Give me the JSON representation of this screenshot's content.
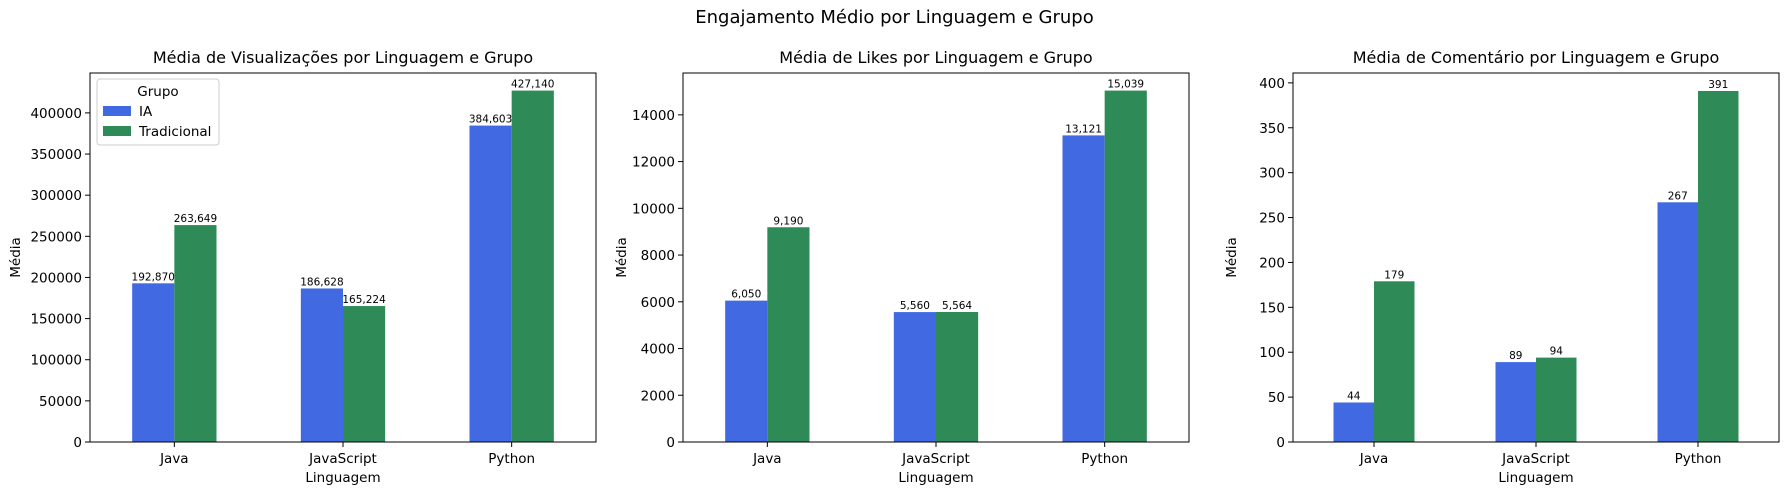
{
  "suptitle": "Engajamento Médio por Linguagem e Grupo",
  "chart_data": [
    {
      "type": "bar",
      "title": "Média de Visualizações por Linguagem e Grupo",
      "xlabel": "Linguagem",
      "ylabel": "Média",
      "categories": [
        "Java",
        "JavaScript",
        "Python"
      ],
      "series": [
        {
          "name": "IA",
          "color": "#4169e1",
          "values": [
            192870,
            186628,
            384603
          ],
          "labels": [
            "192,870",
            "186,628",
            "384,603"
          ]
        },
        {
          "name": "Tradicional",
          "color": "#2e8b57",
          "values": [
            263649,
            165224,
            427140
          ],
          "labels": [
            "263,649",
            "165,224",
            "427,140"
          ]
        }
      ],
      "ylim": [
        0,
        448497
      ],
      "yticks": [
        0,
        50000,
        100000,
        150000,
        200000,
        250000,
        300000,
        350000,
        400000
      ],
      "legend": {
        "title": "Grupo",
        "placement": "top-left"
      },
      "grid": false
    },
    {
      "type": "bar",
      "title": "Média de Likes por Linguagem e Grupo",
      "xlabel": "Linguagem",
      "ylabel": "Média",
      "categories": [
        "Java",
        "JavaScript",
        "Python"
      ],
      "series": [
        {
          "name": "IA",
          "color": "#4169e1",
          "values": [
            6050,
            5560,
            13121
          ],
          "labels": [
            "6,050",
            "5,560",
            "13,121"
          ]
        },
        {
          "name": "Tradicional",
          "color": "#2e8b57",
          "values": [
            9190,
            5564,
            15039
          ],
          "labels": [
            "9,190",
            "5,564",
            "15,039"
          ]
        }
      ],
      "ylim": [
        0,
        15791
      ],
      "yticks": [
        0,
        2000,
        4000,
        6000,
        8000,
        10000,
        12000,
        14000
      ],
      "grid": false
    },
    {
      "type": "bar",
      "title": "Média de Comentário por Linguagem e Grupo",
      "xlabel": "Linguagem",
      "ylabel": "Média",
      "categories": [
        "Java",
        "JavaScript",
        "Python"
      ],
      "series": [
        {
          "name": "IA",
          "color": "#4169e1",
          "values": [
            44,
            89,
            267
          ],
          "labels": [
            "44",
            "89",
            "267"
          ]
        },
        {
          "name": "Tradicional",
          "color": "#2e8b57",
          "values": [
            179,
            94,
            391
          ],
          "labels": [
            "179",
            "94",
            "391"
          ]
        }
      ],
      "ylim": [
        0,
        411
      ],
      "yticks": [
        0,
        50,
        100,
        150,
        200,
        250,
        300,
        350,
        400
      ],
      "grid": false
    }
  ]
}
